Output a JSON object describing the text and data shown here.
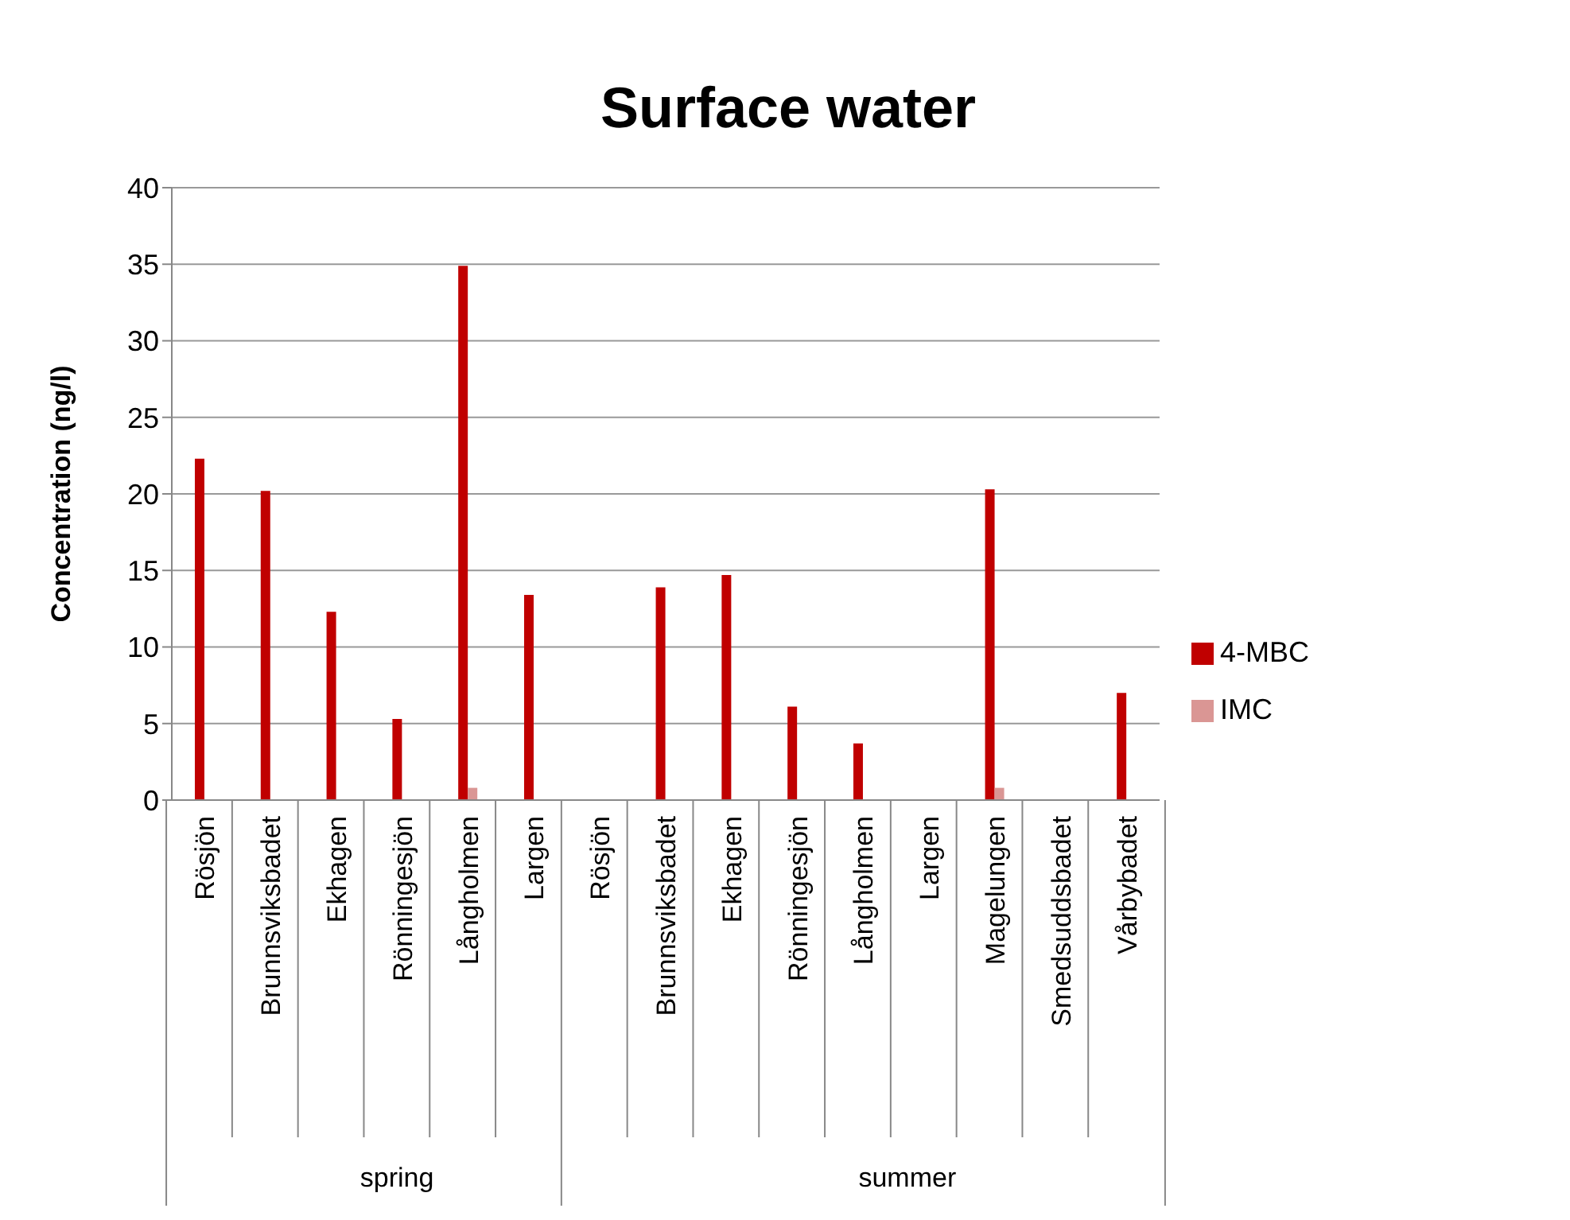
{
  "chart_data": {
    "type": "bar",
    "title": "Surface water",
    "ylabel": "Concentration (ng/l)",
    "categories": [
      "Rösjön",
      "Brunnsviksbadet",
      "Ekhagen",
      "Rönningesjön",
      "Långholmen",
      "Largen",
      "Rösjön",
      "Brunnsviksbadet",
      "Ekhagen",
      "Rönningesjön",
      "Långholmen",
      "Largen",
      "Magelungen",
      "Smedsuddsbadet",
      "Vårbybadet"
    ],
    "series": [
      {
        "name": "4-MBC",
        "color": "#c00000",
        "values": [
          22.3,
          20.2,
          12.3,
          5.3,
          34.9,
          13.4,
          null,
          13.9,
          14.7,
          6.1,
          3.7,
          null,
          20.3,
          null,
          7.0
        ]
      },
      {
        "name": "IMC",
        "color": "#da9694",
        "values": [
          null,
          null,
          null,
          null,
          0.8,
          null,
          null,
          null,
          null,
          null,
          null,
          null,
          0.8,
          null,
          null
        ]
      }
    ],
    "annotations": [
      "spring",
      "summer"
    ],
    "ylim": [
      0,
      40
    ],
    "yticks": [
      0,
      5,
      10,
      15,
      20,
      25,
      30,
      35,
      40
    ],
    "grid": "y",
    "legend": "right"
  }
}
